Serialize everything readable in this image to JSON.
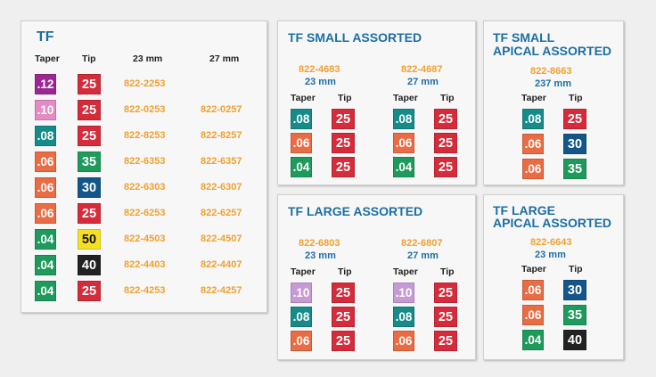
{
  "colors": {
    "title": "#1c6fa5",
    "code": "#f0a030",
    "purple": "#9b2790",
    "pink": "#e58ac3",
    "lilac": "#c79ad6",
    "teal": "#168b8a",
    "orange": "#ea6c44",
    "green": "#1e9a5c",
    "navy": "#14568a",
    "red": "#d52b3a",
    "yellow": "#f7e021",
    "black": "#222222"
  },
  "tf": {
    "title": "TF",
    "headers": {
      "taper": "Taper",
      "tip": "Tip",
      "col23": "23 mm",
      "col27": "27 mm"
    },
    "rows": [
      {
        "taper": ".12",
        "tip": "25",
        "c23": "822-2253",
        "c27": ""
      },
      {
        "taper": ".10",
        "tip": "25",
        "c23": "822-0253",
        "c27": "822-0257"
      },
      {
        "taper": ".08",
        "tip": "25",
        "c23": "822-8253",
        "c27": "822-8257"
      },
      {
        "taper": ".06",
        "tip": "35",
        "c23": "822-6353",
        "c27": "822-6357"
      },
      {
        "taper": ".06",
        "tip": "30",
        "c23": "822-6303",
        "c27": "822-6307"
      },
      {
        "taper": ".06",
        "tip": "25",
        "c23": "822-6253",
        "c27": "822-6257"
      },
      {
        "taper": ".04",
        "tip": "50",
        "c23": "822-4503",
        "c27": "822-4507"
      },
      {
        "taper": ".04",
        "tip": "40",
        "c23": "822-4403",
        "c27": "822-4407"
      },
      {
        "taper": ".04",
        "tip": "25",
        "c23": "822-4253",
        "c27": "822-4257"
      }
    ]
  },
  "tf_small": {
    "title": "TF SMALL ASSORTED",
    "groups": [
      {
        "code": "822-4683",
        "size": "23 mm",
        "taper_label": "Taper",
        "tip_label": "Tip",
        "tapers": [
          ".08",
          ".06",
          ".04"
        ],
        "tips": [
          "25",
          "25",
          "25"
        ]
      },
      {
        "code": "822-4687",
        "size": "27 mm",
        "taper_label": "Taper",
        "tip_label": "Tip",
        "tapers": [
          ".08",
          ".06",
          ".04"
        ],
        "tips": [
          "25",
          "25",
          "25"
        ]
      }
    ]
  },
  "tf_small_apical": {
    "title_line1": "TF SMALL",
    "title_line2": "APICAL ASSORTED",
    "code": "822-8663",
    "size": "237 mm",
    "taper_label": "Taper",
    "tip_label": "Tip",
    "tapers": [
      ".08",
      ".06",
      ".06"
    ],
    "tips": [
      "25",
      "30",
      "35"
    ]
  },
  "tf_large": {
    "title": "TF LARGE ASSORTED",
    "groups": [
      {
        "code": "822-6803",
        "size": "23 mm",
        "taper_label": "Taper",
        "tip_label": "Tip",
        "tapers": [
          ".10",
          ".08",
          ".06"
        ],
        "tips": [
          "25",
          "25",
          "25"
        ]
      },
      {
        "code": "822-6807",
        "size": "27 mm",
        "taper_label": "Taper",
        "tip_label": "Tip",
        "tapers": [
          ".10",
          ".08",
          ".06"
        ],
        "tips": [
          "25",
          "25",
          "25"
        ]
      }
    ]
  },
  "tf_large_apical": {
    "title_line1": "TF LARGE",
    "title_line2": "APICAL ASSORTED",
    "code": "822-6643",
    "size": "23 mm",
    "taper_label": "Taper",
    "tip_label": "Tip",
    "tapers": [
      ".06",
      ".06",
      ".04"
    ],
    "tips": [
      "30",
      "35",
      "40"
    ]
  }
}
